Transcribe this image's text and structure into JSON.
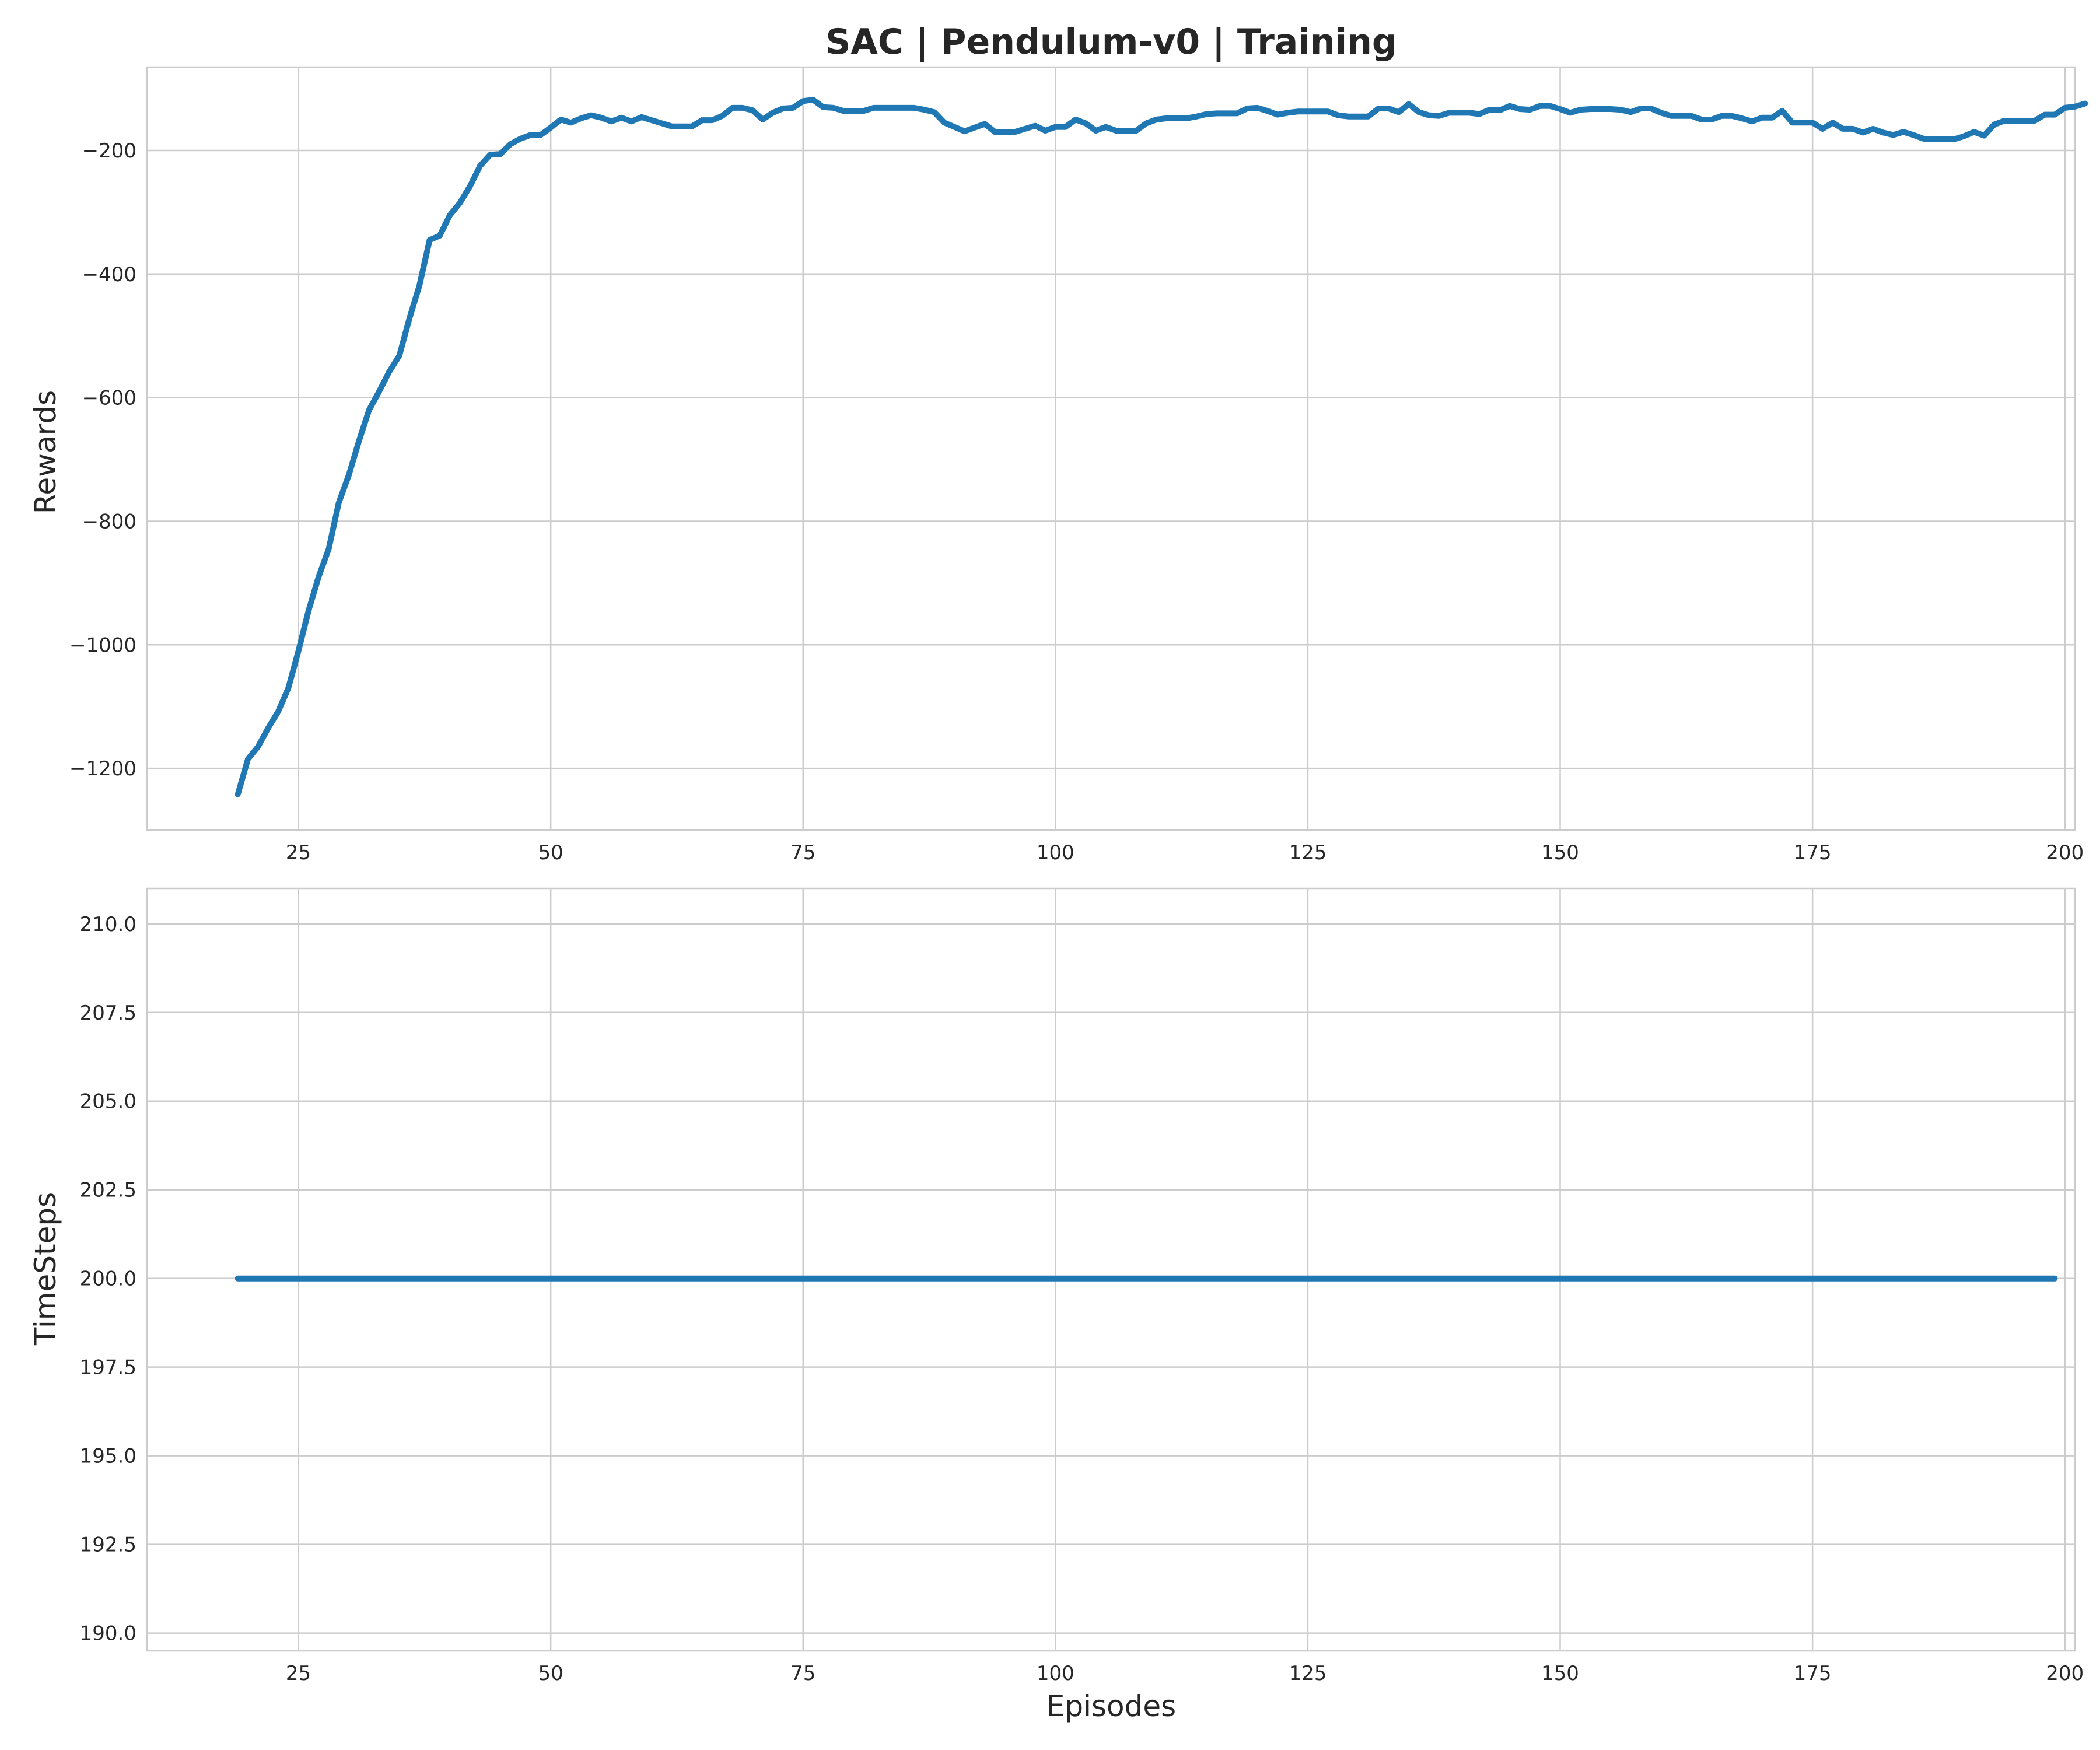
{
  "figure": {
    "title": "SAC | Pendulum-v0 | Training",
    "line_color": "#1f77b4",
    "grid_color": "#cccccc"
  },
  "chart_data": [
    {
      "type": "line",
      "title": "SAC | Pendulum-v0 | Training",
      "xlabel": "",
      "ylabel": "Rewards",
      "xlim": [
        10,
        201
      ],
      "ylim": [
        -1300,
        -65
      ],
      "xticks": [
        25,
        50,
        75,
        100,
        125,
        150,
        175,
        200
      ],
      "yticks": [
        -1200,
        -1000,
        -800,
        -600,
        -400,
        -200
      ],
      "ytick_labels": [
        "−1200",
        "−1000",
        "−800",
        "−600",
        "−400",
        "−200"
      ],
      "grid": true,
      "series": [
        {
          "x_start": 19,
          "x_end": 199,
          "values": [
            -1242,
            -1185,
            -1165,
            -1135,
            -1108,
            -1070,
            -1010,
            -945,
            -890,
            -845,
            -770,
            -725,
            -670,
            -620,
            -590,
            -558,
            -532,
            -472,
            -418,
            -345,
            -338,
            -305,
            -285,
            -258,
            -225,
            -207,
            -206,
            -190,
            -181,
            -175,
            -175,
            -163,
            -150,
            -155,
            -148,
            -143,
            -147,
            -153,
            -147,
            -153,
            -146,
            -151,
            -156,
            -161,
            -161,
            -161,
            -151,
            -151,
            -144,
            -131,
            -131,
            -135,
            -150,
            -139,
            -132,
            -131,
            -120,
            -118,
            -130,
            -131,
            -136,
            -136,
            -136,
            -131,
            -131,
            -131,
            -131,
            -131,
            -134,
            -138,
            -155,
            -162,
            -169,
            -163,
            -157,
            -170,
            -170,
            -170,
            -165,
            -160,
            -168,
            -162,
            -162,
            -150,
            -156,
            -168,
            -162,
            -168,
            -168,
            -168,
            -156,
            -150,
            -148,
            -148,
            -148,
            -145,
            -141,
            -140,
            -140,
            -140,
            -132,
            -131,
            -136,
            -142,
            -139,
            -137,
            -137,
            -137,
            -137,
            -143,
            -145,
            -145,
            -145,
            -132,
            -132,
            -138,
            -125,
            -138,
            -143,
            -144,
            -139,
            -139,
            -139,
            -141,
            -134,
            -135,
            -128,
            -133,
            -134,
            -128,
            -128,
            -133,
            -139,
            -134,
            -133,
            -133,
            -133,
            -134,
            -138,
            -132,
            -132,
            -139,
            -144,
            -144,
            -144,
            -150,
            -150,
            -144,
            -144,
            -148,
            -153,
            -147,
            -147,
            -136,
            -155,
            -155,
            -155,
            -165,
            -155,
            -165,
            -165,
            -171,
            -165,
            -171,
            -175,
            -170,
            -175,
            -181,
            -182,
            -182,
            -182,
            -177,
            -170,
            -176,
            -158,
            -152,
            -152,
            -152,
            -152,
            -142,
            -142,
            -131,
            -129,
            -124
          ]
        }
      ]
    },
    {
      "type": "line",
      "title": "",
      "xlabel": "Episodes",
      "ylabel": "TimeSteps",
      "xlim": [
        10,
        201
      ],
      "ylim": [
        189.5,
        211.0
      ],
      "xticks": [
        25,
        50,
        75,
        100,
        125,
        150,
        175,
        200
      ],
      "yticks": [
        190.0,
        192.5,
        195.0,
        197.5,
        200.0,
        202.5,
        205.0,
        207.5,
        210.0
      ],
      "ytick_labels": [
        "190.0",
        "192.5",
        "195.0",
        "197.5",
        "200.0",
        "202.5",
        "205.0",
        "207.5",
        "210.0"
      ],
      "grid": true,
      "series": [
        {
          "x_start": 19,
          "x_end": 199,
          "constant_value": 200.0
        }
      ]
    }
  ]
}
